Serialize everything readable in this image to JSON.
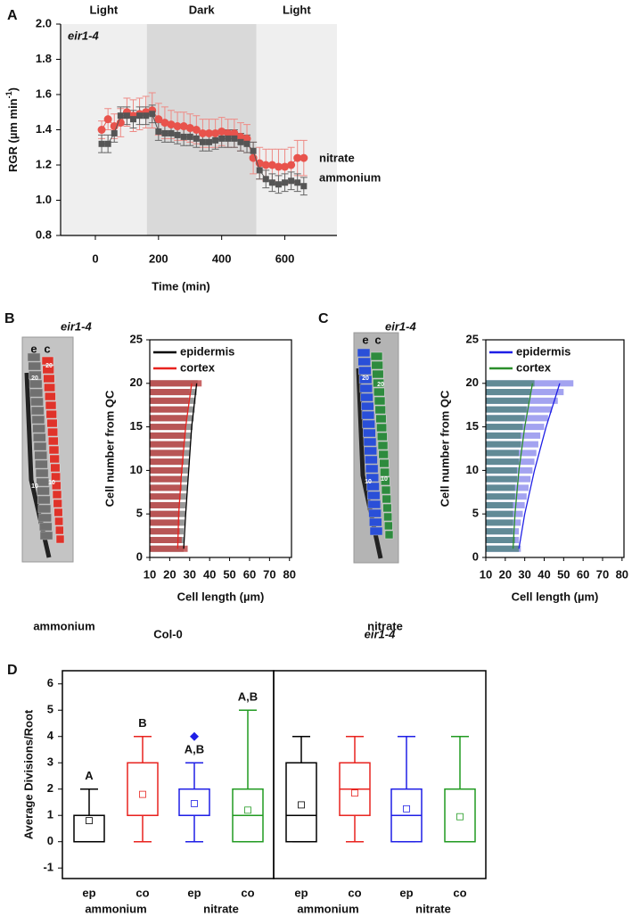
{
  "chart_data": [
    {
      "panel": "A",
      "type": "line",
      "annotation": "eir1-4",
      "y_label": [
        "RGR  (µm min",
        "-1",
        ")"
      ],
      "x_label": "Time (min)",
      "regions": [
        {
          "label": "Light",
          "start": -110,
          "end": 163,
          "color": "#efefef"
        },
        {
          "label": "Dark",
          "start": 163,
          "end": 510,
          "color": "#d9d9d9"
        },
        {
          "label": "Light",
          "start": 510,
          "end": 765,
          "color": "#efefef"
        }
      ],
      "xlim": [
        -110,
        765
      ],
      "xticks": [
        0,
        200,
        400,
        600
      ],
      "ylim": [
        0.8,
        2.0
      ],
      "yticks": [
        0.8,
        {
          "value": 1.0,
          "label": "1.0"
        },
        1.2,
        1.4,
        1.6,
        1.8,
        {
          "value": 2.0,
          "label": "2.0"
        }
      ],
      "x": [
        20,
        40,
        60,
        80,
        100,
        120,
        140,
        160,
        180,
        200,
        220,
        240,
        260,
        280,
        300,
        320,
        340,
        360,
        380,
        400,
        420,
        440,
        460,
        480,
        500,
        520,
        540,
        560,
        580,
        600,
        620,
        640,
        660
      ],
      "series": [
        {
          "name": "nitrate",
          "color": "#e8534c",
          "error_color": "#ee8a85",
          "marker": "circle",
          "values": [
            1.4,
            1.46,
            1.42,
            1.44,
            1.5,
            1.48,
            1.49,
            1.5,
            1.51,
            1.46,
            1.44,
            1.43,
            1.42,
            1.42,
            1.41,
            1.4,
            1.38,
            1.38,
            1.38,
            1.39,
            1.38,
            1.38,
            1.36,
            1.35,
            1.24,
            1.21,
            1.2,
            1.2,
            1.19,
            1.19,
            1.2,
            1.24,
            1.24
          ],
          "errors": [
            0.05,
            0.06,
            0.07,
            0.08,
            0.08,
            0.09,
            0.09,
            0.09,
            0.1,
            0.09,
            0.09,
            0.08,
            0.08,
            0.08,
            0.08,
            0.08,
            0.08,
            0.08,
            0.08,
            0.08,
            0.08,
            0.08,
            0.08,
            0.08,
            0.09,
            0.09,
            0.09,
            0.09,
            0.1,
            0.1,
            0.1,
            0.1,
            0.1
          ]
        },
        {
          "name": "ammonium",
          "color": "#555555",
          "error_color": "#666666",
          "marker": "square",
          "values": [
            1.32,
            1.32,
            1.38,
            1.48,
            1.48,
            1.46,
            1.48,
            1.48,
            1.49,
            1.39,
            1.38,
            1.38,
            1.37,
            1.36,
            1.36,
            1.35,
            1.33,
            1.33,
            1.34,
            1.35,
            1.35,
            1.35,
            1.33,
            1.32,
            1.28,
            1.17,
            1.12,
            1.1,
            1.09,
            1.1,
            1.11,
            1.1,
            1.08
          ],
          "errors": [
            0.05,
            0.05,
            0.05,
            0.05,
            0.05,
            0.05,
            0.05,
            0.05,
            0.05,
            0.05,
            0.05,
            0.05,
            0.05,
            0.05,
            0.05,
            0.05,
            0.05,
            0.05,
            0.05,
            0.05,
            0.05,
            0.05,
            0.05,
            0.05,
            0.05,
            0.05,
            0.05,
            0.05,
            0.05,
            0.05,
            0.05,
            0.05,
            0.05
          ]
        }
      ]
    },
    {
      "panel": "B",
      "type": "hbar",
      "image": {
        "title": "eir1-4",
        "columns": [
          "e",
          "c"
        ],
        "cell_labels": [
          "20",
          "20",
          "10",
          "10"
        ],
        "caption": "ammonium"
      },
      "x_label": "Cell length (µm)",
      "y_label": "Cell number from QC",
      "xlim": [
        10,
        81
      ],
      "xticks": [
        10,
        20,
        30,
        40,
        50,
        60,
        70,
        80
      ],
      "ylim": [
        0,
        25
      ],
      "yticks": [
        0,
        5,
        10,
        15,
        20,
        25
      ],
      "y": [
        1,
        2,
        3,
        4,
        5,
        6,
        7,
        8,
        9,
        10,
        11,
        12,
        13,
        14,
        15,
        16,
        17,
        18,
        19,
        20
      ],
      "fit_y": [
        1,
        5,
        10,
        15,
        20
      ],
      "series": [
        {
          "name": "epidermis",
          "color": "#000000",
          "bar_color": "#9a9a9a",
          "values": [
            27,
            27,
            27,
            27.5,
            28,
            28,
            28.5,
            29,
            29,
            29.5,
            30,
            30,
            30.5,
            31,
            31.5,
            32,
            32.5,
            33,
            33.5,
            34
          ],
          "fit": [
            27,
            28,
            29.5,
            31,
            33.5
          ]
        },
        {
          "name": "cortex",
          "color": "#e8231f",
          "bar_color": "rgba(190,70,70,0.82)",
          "values": [
            29,
            26,
            25,
            25,
            25,
            25,
            25.5,
            26,
            26,
            26.5,
            27,
            27,
            27.5,
            28,
            28,
            28.5,
            29,
            29.5,
            30,
            36
          ],
          "fit": [
            24,
            24.5,
            26,
            28,
            31
          ]
        }
      ]
    },
    {
      "panel": "C",
      "type": "hbar",
      "image": {
        "title": "eir1-4",
        "columns": [
          "e",
          "c"
        ],
        "cell_labels": [
          "20",
          "20",
          "10",
          "10"
        ],
        "caption": "nitrate"
      },
      "x_label": "Cell length (µm)",
      "y_label": "Cell number from QC",
      "xlim": [
        10,
        81
      ],
      "xticks": [
        10,
        20,
        30,
        40,
        50,
        60,
        70,
        80
      ],
      "ylim": [
        0,
        25
      ],
      "yticks": [
        0,
        5,
        10,
        15,
        20,
        25
      ],
      "y": [
        1,
        2,
        3,
        4,
        5,
        6,
        7,
        8,
        9,
        10,
        11,
        12,
        13,
        14,
        15,
        16,
        17,
        18,
        19,
        20
      ],
      "fit_y": [
        1,
        5,
        10,
        15,
        20
      ],
      "series": [
        {
          "name": "epidermis",
          "color": "#1f1fe6",
          "bar_color": "#a3a3f0",
          "values": [
            28,
            27,
            27,
            28,
            29,
            30,
            31,
            32,
            33,
            34,
            35,
            36,
            37,
            38,
            40,
            42,
            44,
            47,
            50,
            55
          ],
          "fit": [
            27,
            30,
            35,
            41,
            48
          ]
        },
        {
          "name": "cortex",
          "color": "#2b8f2b",
          "bar_color": "rgba(90,135,140,0.9)",
          "values": [
            27,
            25,
            24,
            24,
            24,
            24,
            25,
            25,
            26,
            26,
            27,
            27,
            28,
            28,
            29,
            30,
            31,
            32,
            33,
            35
          ],
          "fit": [
            24,
            25,
            27,
            30,
            34
          ]
        }
      ]
    },
    {
      "panel": "D",
      "type": "box",
      "y_label": "Average Divisions/Root",
      "ylim": [
        -1.4,
        6.5
      ],
      "yticks": [
        -1,
        0,
        1,
        2,
        3,
        4,
        5,
        6
      ],
      "groups": [
        {
          "name": "Col-0",
          "italic": false,
          "treatments": [
            {
              "name": "ammonium",
              "boxes": [
                {
                  "name": "ep",
                  "color": "#000000",
                  "min": 0,
                  "q1": 0,
                  "median": 0,
                  "q3": 1,
                  "max": 2,
                  "mean": 0.8,
                  "letter": "A"
                },
                {
                  "name": "co",
                  "color": "#e8231f",
                  "min": 0,
                  "q1": 1,
                  "median": 1,
                  "q3": 3,
                  "max": 4,
                  "mean": 1.8,
                  "letter": "B"
                }
              ]
            },
            {
              "name": "nitrate",
              "boxes": [
                {
                  "name": "ep",
                  "color": "#1f1fe6",
                  "min": 0,
                  "q1": 1,
                  "median": 1,
                  "q3": 2,
                  "max": 3,
                  "mean": 1.45,
                  "outliers": [
                    4
                  ],
                  "letter": "A,B"
                },
                {
                  "name": "co",
                  "color": "#219a21",
                  "min": 0,
                  "q1": 0,
                  "median": 1,
                  "q3": 2,
                  "max": 5,
                  "mean": 1.2,
                  "letter": "A,B"
                }
              ]
            }
          ]
        },
        {
          "name": "eir1-4",
          "italic": true,
          "treatments": [
            {
              "name": "ammonium",
              "boxes": [
                {
                  "name": "ep",
                  "color": "#000000",
                  "min": 0,
                  "q1": 0,
                  "median": 1,
                  "q3": 3,
                  "max": 4,
                  "mean": 1.4
                },
                {
                  "name": "co",
                  "color": "#e8231f",
                  "min": 0,
                  "q1": 1,
                  "median": 2,
                  "q3": 3,
                  "max": 4,
                  "mean": 1.85
                }
              ]
            },
            {
              "name": "nitrate",
              "boxes": [
                {
                  "name": "ep",
                  "color": "#1f1fe6",
                  "min": 0,
                  "q1": 0,
                  "median": 1,
                  "q3": 2,
                  "max": 4,
                  "mean": 1.25
                },
                {
                  "name": "co",
                  "color": "#219a21",
                  "min": 0,
                  "q1": 0,
                  "median": 0,
                  "q3": 2,
                  "max": 4,
                  "mean": 0.95
                }
              ]
            }
          ]
        }
      ]
    }
  ]
}
